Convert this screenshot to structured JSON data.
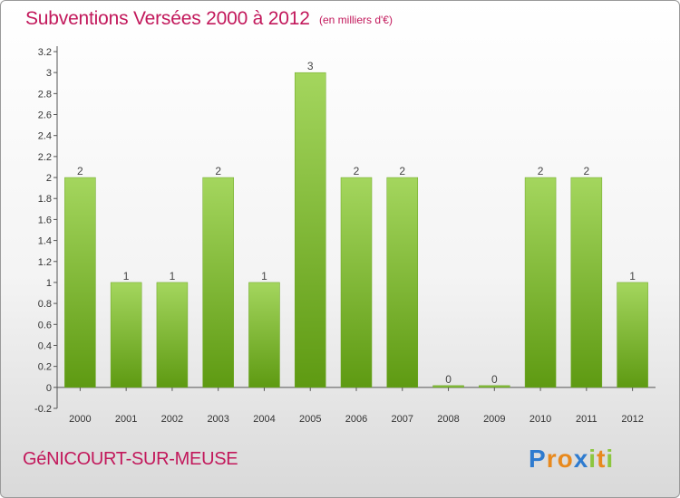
{
  "title": "Subventions Versées 2000 à 2012",
  "unit_note": "(en milliers d'€)",
  "commune": "GéNICOURT-SUR-MEUSE",
  "brand": {
    "text": "Proxiti",
    "letter_colors": [
      "#2e7bcf",
      "#e8891d",
      "#e8891d",
      "#2e7bcf",
      "#8cc63f",
      "#e8891d",
      "#8cc63f"
    ]
  },
  "colors": {
    "bar_light": "#a4d65e",
    "bar_dark": "#5e9a12",
    "title": "#c2185b",
    "axis": "#555555",
    "grid": "#d0d0d0"
  },
  "chart_data": {
    "type": "bar",
    "categories": [
      "2000",
      "2001",
      "2002",
      "2003",
      "2004",
      "2005",
      "2006",
      "2007",
      "2008",
      "2009",
      "2010",
      "2011",
      "2012"
    ],
    "values": [
      2,
      1,
      1,
      2,
      1,
      3,
      2,
      2,
      0,
      0,
      2,
      2,
      1
    ],
    "data_labels": [
      "2",
      "1",
      "1",
      "2",
      "1",
      "3",
      "2",
      "2",
      "0",
      "0",
      "2",
      "2",
      "1"
    ],
    "ylim": [
      -0.2,
      3.2
    ],
    "yticks": [
      "-0.2",
      "0",
      "0.2",
      "0.4",
      "0.6",
      "0.8",
      "1",
      "1.2",
      "1.4",
      "1.6",
      "1.8",
      "2",
      "2.2",
      "2.4",
      "2.6",
      "2.8",
      "3",
      "3.2"
    ],
    "grid": false,
    "legend": "none",
    "xlabel": "",
    "ylabel": ""
  }
}
